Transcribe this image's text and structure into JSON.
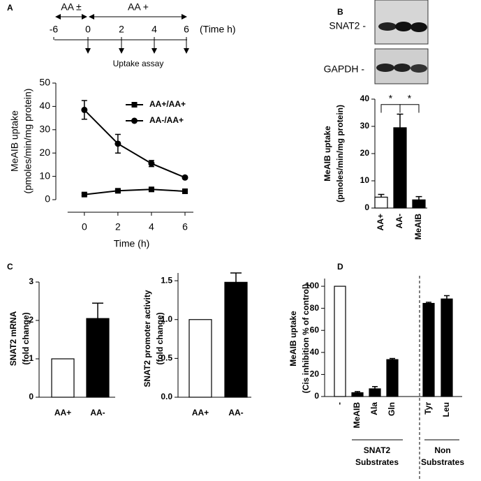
{
  "panel_labels": [
    "A",
    "B",
    "C",
    "D"
  ],
  "timeline": {
    "phases": [
      "AA ±",
      "AA +"
    ],
    "ticks": [
      -6,
      0,
      2,
      4,
      6
    ],
    "unit_label": "(Time h)",
    "assay_label": "Uptake assay"
  },
  "blot": {
    "labels": [
      "SNAT2 -",
      "GAPDH -"
    ]
  },
  "chart_data": [
    {
      "type": "line",
      "y_label": [
        "MeAIB uptake",
        "(pmoles/min/mg protein)"
      ],
      "x_label": "Time (h)",
      "x": [
        0,
        2,
        4,
        6
      ],
      "xticks": [
        0,
        2,
        4,
        6
      ],
      "xlim": [
        -1.7,
        6.5
      ],
      "ylim": [
        0,
        50
      ],
      "yticks": [
        0,
        10,
        20,
        30,
        40,
        50
      ],
      "series": [
        {
          "name": "AA+/AA+",
          "color": "#000000",
          "marker": "square",
          "values": [
            2.2,
            3.8,
            4.4,
            3.6
          ],
          "errors": [
            0.5,
            0.6,
            0.6,
            0.5
          ]
        },
        {
          "name": "AA-/AA+",
          "color": "#000000",
          "marker": "circle",
          "values": [
            38.5,
            24,
            15.5,
            9.5
          ],
          "errors": [
            4,
            4,
            1.3,
            0.5
          ]
        }
      ]
    },
    {
      "type": "bar",
      "y_label": [
        "MeAIB uptake",
        "(pmoles/min/mg protein)"
      ],
      "categories": [
        "AA+",
        "AA-",
        "MeAIB"
      ],
      "values": [
        4,
        29.5,
        3
      ],
      "errors": [
        1,
        5,
        1.2
      ],
      "colors": [
        "#ffffff",
        "#000000",
        "#000000"
      ],
      "ylim": [
        0,
        40
      ],
      "yticks": [
        0,
        10,
        20,
        30,
        40
      ],
      "annotations": [
        "*",
        "*"
      ]
    },
    {
      "type": "bar",
      "y_label": [
        "SNAT2 mRNA",
        "(fold change)"
      ],
      "categories": [
        "AA+",
        "AA-"
      ],
      "values": [
        1,
        2.05
      ],
      "errors": [
        null,
        0.4
      ],
      "colors": [
        "#ffffff",
        "#000000"
      ],
      "ylim": [
        0,
        3
      ],
      "yticks": [
        0,
        1,
        2,
        3
      ]
    },
    {
      "type": "bar",
      "y_label": [
        "SNAT2 promoter activity",
        "(fold change)"
      ],
      "categories": [
        "AA+",
        "AA-"
      ],
      "values": [
        1,
        1.48
      ],
      "errors": [
        null,
        0.12
      ],
      "colors": [
        "#ffffff",
        "#000000"
      ],
      "ylim": [
        0,
        1.6
      ],
      "yticks": [
        {
          "value": 0,
          "label": "0.0"
        },
        0.5,
        {
          "value": 1,
          "label": "1.0"
        },
        1.5
      ]
    },
    {
      "type": "bar",
      "y_label": [
        "MeAIB uptake",
        "(Cis inhibition % of control)"
      ],
      "categories": [
        "-",
        "MeAIB",
        "Ala",
        "Gln",
        "Tyr",
        "Leu"
      ],
      "values": [
        100,
        3.5,
        7,
        33.5,
        84.5,
        88.5
      ],
      "errors": [
        null,
        1,
        2,
        1,
        1,
        3
      ],
      "colors": [
        "#ffffff",
        "#000000",
        "#000000",
        "#000000",
        "#000000",
        "#000000"
      ],
      "ylim": [
        0,
        107
      ],
      "yticks": [
        0,
        20,
        40,
        60,
        80,
        100
      ],
      "group_labels": [
        [
          "SNAT2",
          "Substrates"
        ],
        [
          "Non",
          "Substrates"
        ]
      ]
    }
  ]
}
